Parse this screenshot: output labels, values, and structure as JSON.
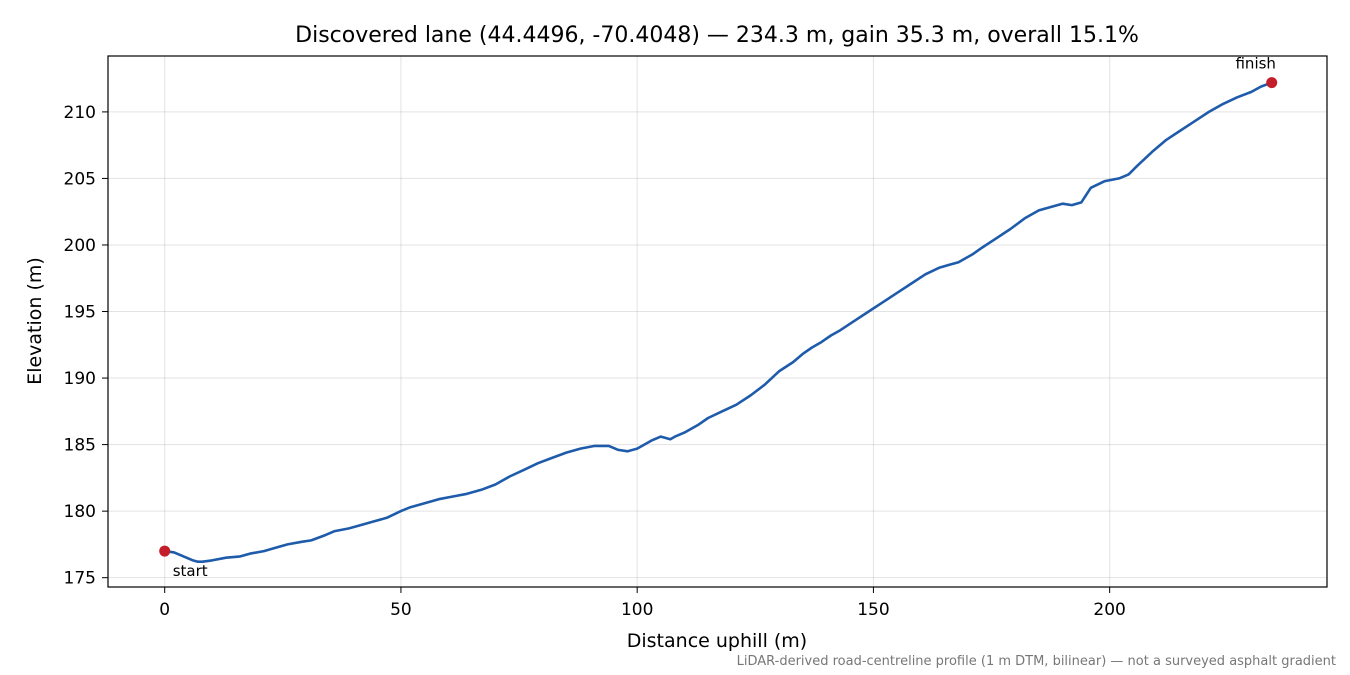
{
  "chart_data": {
    "type": "line",
    "title": "Discovered lane (44.4496, -70.4048) — 234.3 m, gain 35.3 m, overall 15.1%",
    "xlabel": "Distance uphill (m)",
    "ylabel": "Elevation (m)",
    "xlim": [
      -12,
      246
    ],
    "ylim": [
      174.3,
      214.2
    ],
    "xticks": [
      0,
      50,
      100,
      150,
      200
    ],
    "yticks": [
      175,
      180,
      185,
      190,
      195,
      200,
      205,
      210
    ],
    "grid": true,
    "footnote": "LiDAR-derived road-centreline profile (1 m DTM, bilinear) — not a surveyed asphalt gradient",
    "series": [
      {
        "color": "#1f5bab",
        "x": [
          0,
          2,
          4,
          6,
          7,
          8,
          10,
          13,
          16,
          18,
          21,
          23,
          26,
          29,
          31,
          34,
          36,
          39,
          41,
          44,
          47,
          50,
          52,
          55,
          58,
          61,
          64,
          67,
          70,
          73,
          76,
          79,
          82,
          85,
          88,
          91,
          94,
          96,
          98,
          100,
          103,
          105,
          107,
          108,
          110,
          113,
          115,
          118,
          121,
          124,
          127,
          130,
          133,
          135,
          137,
          139,
          141,
          143,
          146,
          149,
          152,
          155,
          158,
          161,
          164,
          166,
          168,
          171,
          173,
          176,
          179,
          182,
          185,
          188,
          190,
          192,
          194,
          196,
          199,
          202,
          204,
          206,
          209,
          212,
          215,
          218,
          221,
          224,
          227,
          230,
          232,
          234.3
        ],
        "y": [
          177.0,
          176.9,
          176.6,
          176.3,
          176.2,
          176.2,
          176.3,
          176.5,
          176.6,
          176.8,
          177.0,
          177.2,
          177.5,
          177.7,
          177.8,
          178.2,
          178.5,
          178.7,
          178.9,
          179.2,
          179.5,
          180.0,
          180.3,
          180.6,
          180.9,
          181.1,
          181.3,
          181.6,
          182.0,
          182.6,
          183.1,
          183.6,
          184.0,
          184.4,
          184.7,
          184.9,
          184.9,
          184.6,
          184.5,
          184.7,
          185.3,
          185.6,
          185.4,
          185.6,
          185.9,
          186.5,
          187.0,
          187.5,
          188.0,
          188.7,
          189.5,
          190.5,
          191.2,
          191.8,
          192.3,
          192.7,
          193.2,
          193.6,
          194.3,
          195.0,
          195.7,
          196.4,
          197.1,
          197.8,
          198.3,
          198.5,
          198.7,
          199.3,
          199.8,
          200.5,
          201.2,
          202.0,
          202.6,
          202.9,
          203.1,
          203.0,
          203.2,
          204.3,
          204.8,
          205.0,
          205.3,
          206.0,
          207.0,
          207.9,
          208.6,
          209.3,
          210.0,
          210.6,
          211.1,
          211.5,
          211.9,
          212.2
        ]
      }
    ],
    "annotations": [
      {
        "label": "start",
        "x": 0,
        "y": 177.0,
        "color": "#c41e2a"
      },
      {
        "label": "finish",
        "x": 234.3,
        "y": 212.2,
        "color": "#c41e2a"
      }
    ]
  }
}
